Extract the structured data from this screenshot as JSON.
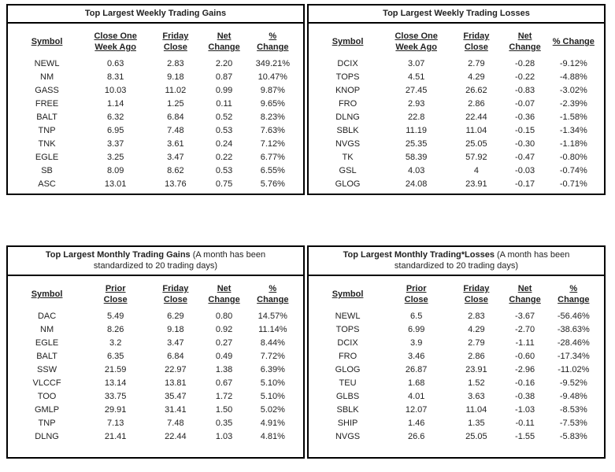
{
  "page": {
    "background_color": "#ffffff",
    "border_color": "#000000",
    "text_color": "#222222"
  },
  "tables": [
    {
      "id": "weekly_gains",
      "title_bold": "Top Largest Weekly Trading Gains",
      "title_note": "",
      "columns": [
        {
          "lines": [
            "Symbol"
          ]
        },
        {
          "lines": [
            "Close One",
            "Week Ago"
          ]
        },
        {
          "lines": [
            "Friday",
            "Close"
          ]
        },
        {
          "lines": [
            "Net",
            "Change"
          ]
        },
        {
          "lines": [
            "%",
            "Change"
          ]
        }
      ],
      "rows": [
        [
          "NEWL",
          "0.63",
          "2.83",
          "2.20",
          "349.21%"
        ],
        [
          "NM",
          "8.31",
          "9.18",
          "0.87",
          "10.47%"
        ],
        [
          "GASS",
          "10.03",
          "11.02",
          "0.99",
          "9.87%"
        ],
        [
          "FREE",
          "1.14",
          "1.25",
          "0.11",
          "9.65%"
        ],
        [
          "BALT",
          "6.32",
          "6.84",
          "0.52",
          "8.23%"
        ],
        [
          "TNP",
          "6.95",
          "7.48",
          "0.53",
          "7.63%"
        ],
        [
          "TNK",
          "3.37",
          "3.61",
          "0.24",
          "7.12%"
        ],
        [
          "EGLE",
          "3.25",
          "3.47",
          "0.22",
          "6.77%"
        ],
        [
          "SB",
          "8.09",
          "8.62",
          "0.53",
          "6.55%"
        ],
        [
          "ASC",
          "13.01",
          "13.76",
          "0.75",
          "5.76%"
        ]
      ]
    },
    {
      "id": "weekly_losses",
      "title_bold": "Top Largest Weekly Trading Losses",
      "title_note": "",
      "columns": [
        {
          "lines": [
            "Symbol"
          ]
        },
        {
          "lines": [
            "Close One",
            "Week Ago"
          ]
        },
        {
          "lines": [
            "Friday",
            "Close"
          ]
        },
        {
          "lines": [
            "Net",
            "Change"
          ]
        },
        {
          "lines": [
            "% Change"
          ]
        }
      ],
      "rows": [
        [
          "DCIX",
          "3.07",
          "2.79",
          "-0.28",
          "-9.12%"
        ],
        [
          "TOPS",
          "4.51",
          "4.29",
          "-0.22",
          "-4.88%"
        ],
        [
          "KNOP",
          "27.45",
          "26.62",
          "-0.83",
          "-3.02%"
        ],
        [
          "FRO",
          "2.93",
          "2.86",
          "-0.07",
          "-2.39%"
        ],
        [
          "DLNG",
          "22.8",
          "22.44",
          "-0.36",
          "-1.58%"
        ],
        [
          "SBLK",
          "11.19",
          "11.04",
          "-0.15",
          "-1.34%"
        ],
        [
          "NVGS",
          "25.35",
          "25.05",
          "-0.30",
          "-1.18%"
        ],
        [
          "TK",
          "58.39",
          "57.92",
          "-0.47",
          "-0.80%"
        ],
        [
          "GSL",
          "4.03",
          "4",
          "-0.03",
          "-0.74%"
        ],
        [
          "GLOG",
          "24.08",
          "23.91",
          "-0.17",
          "-0.71%"
        ]
      ]
    },
    {
      "id": "monthly_gains",
      "title_bold": "Top Largest Monthly Trading Gains",
      "title_note": " (A month has been standardized to 20 trading days)",
      "columns": [
        {
          "lines": [
            "Symbol"
          ]
        },
        {
          "lines": [
            "Prior",
            "Close"
          ]
        },
        {
          "lines": [
            "Friday",
            "Close"
          ]
        },
        {
          "lines": [
            "Net",
            "Change"
          ]
        },
        {
          "lines": [
            "%",
            "Change"
          ]
        }
      ],
      "rows": [
        [
          "DAC",
          "5.49",
          "6.29",
          "0.80",
          "14.57%"
        ],
        [
          "NM",
          "8.26",
          "9.18",
          "0.92",
          "11.14%"
        ],
        [
          "EGLE",
          "3.2",
          "3.47",
          "0.27",
          "8.44%"
        ],
        [
          "BALT",
          "6.35",
          "6.84",
          "0.49",
          "7.72%"
        ],
        [
          "SSW",
          "21.59",
          "22.97",
          "1.38",
          "6.39%"
        ],
        [
          "VLCCF",
          "13.14",
          "13.81",
          "0.67",
          "5.10%"
        ],
        [
          "TOO",
          "33.75",
          "35.47",
          "1.72",
          "5.10%"
        ],
        [
          "GMLP",
          "29.91",
          "31.41",
          "1.50",
          "5.02%"
        ],
        [
          "TNP",
          "7.13",
          "7.48",
          "0.35",
          "4.91%"
        ],
        [
          "DLNG",
          "21.41",
          "22.44",
          "1.03",
          "4.81%"
        ]
      ]
    },
    {
      "id": "monthly_losses",
      "title_bold": "Top Largest Monthly Trading*Losses",
      "title_note": " (A month has been standardized to 20 trading days)",
      "columns": [
        {
          "lines": [
            "Symbol"
          ]
        },
        {
          "lines": [
            "Prior",
            "Close"
          ]
        },
        {
          "lines": [
            "Friday",
            "Close"
          ]
        },
        {
          "lines": [
            "Net",
            "Change"
          ]
        },
        {
          "lines": [
            "%",
            "Change"
          ]
        }
      ],
      "rows": [
        [
          "NEWL",
          "6.5",
          "2.83",
          "-3.67",
          "-56.46%"
        ],
        [
          "TOPS",
          "6.99",
          "4.29",
          "-2.70",
          "-38.63%"
        ],
        [
          "DCIX",
          "3.9",
          "2.79",
          "-1.11",
          "-28.46%"
        ],
        [
          "FRO",
          "3.46",
          "2.86",
          "-0.60",
          "-17.34%"
        ],
        [
          "GLOG",
          "26.87",
          "23.91",
          "-2.96",
          "-11.02%"
        ],
        [
          "TEU",
          "1.68",
          "1.52",
          "-0.16",
          "-9.52%"
        ],
        [
          "GLBS",
          "4.01",
          "3.63",
          "-0.38",
          "-9.48%"
        ],
        [
          "SBLK",
          "12.07",
          "11.04",
          "-1.03",
          "-8.53%"
        ],
        [
          "SHIP",
          "1.46",
          "1.35",
          "-0.11",
          "-7.53%"
        ],
        [
          "NVGS",
          "26.6",
          "25.05",
          "-1.55",
          "-5.83%"
        ]
      ]
    }
  ]
}
